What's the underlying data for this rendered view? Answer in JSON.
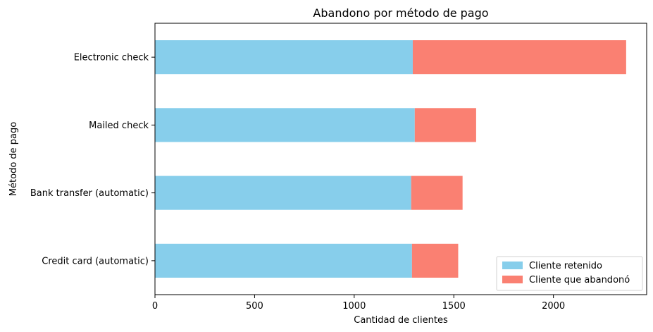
{
  "chart_data": {
    "type": "bar",
    "orientation": "horizontal",
    "stacked": true,
    "title": "Abandono por método de pago",
    "xlabel": "Cantidad de clientes",
    "ylabel": "Método de pago",
    "categories": [
      "Credit card (automatic)",
      "Bank transfer (automatic)",
      "Mailed check",
      "Electronic check"
    ],
    "series": [
      {
        "name": "Cliente retenido",
        "color": "#87ceeb",
        "values": [
          1290,
          1286,
          1304,
          1294
        ]
      },
      {
        "name": "Cliente que abandonó",
        "color": "#fa8072",
        "values": [
          232,
          258,
          308,
          1071
        ]
      }
    ],
    "xlim": [
      0,
      2468
    ],
    "xticks": [
      0,
      500,
      1000,
      1500,
      2000
    ],
    "grid": false,
    "legend_position": "lower right"
  }
}
